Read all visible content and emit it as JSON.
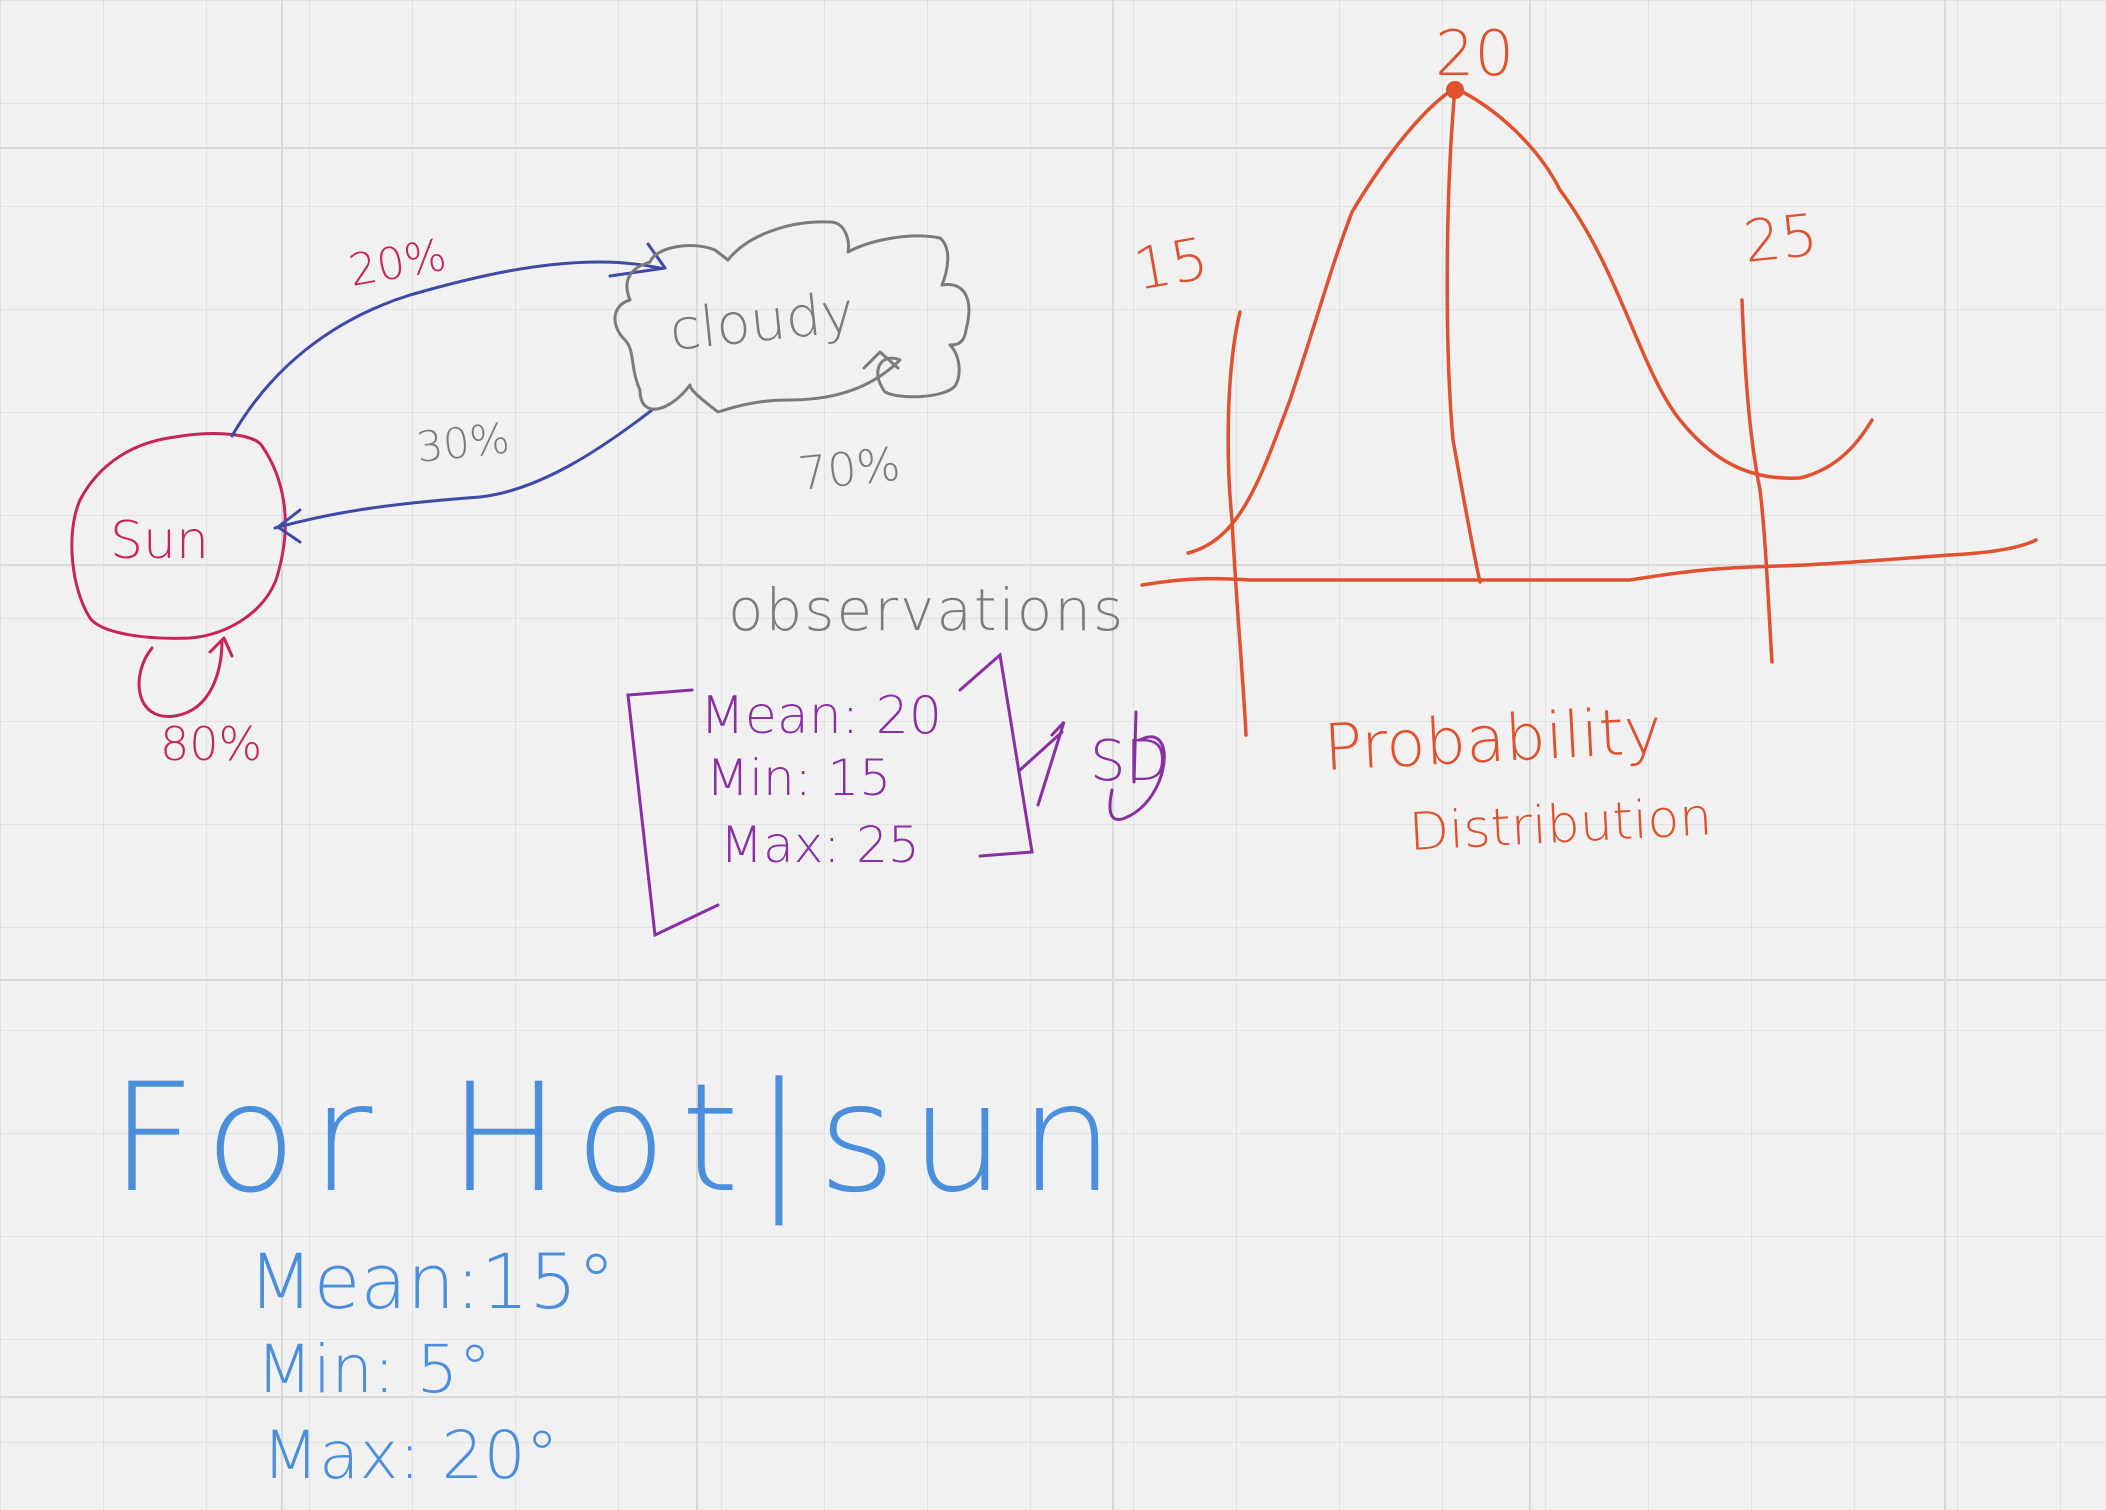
{
  "colors": {
    "background": "#f1f1f1",
    "grid": "#e2e2e2",
    "grid_major": "#d6d6d6",
    "sun": "#c8245a",
    "arrow": "#3e4aa8",
    "cloud": "#7b7b7b",
    "observations": "#8a2fa3",
    "distribution": "#e0522f",
    "hot_sun": "#4b8fdc"
  },
  "markov": {
    "sun_label": "Sun",
    "cloudy_label": "cloudy",
    "sun_to_cloudy": "20%",
    "cloudy_to_sun": "30%",
    "sun_self": "80%",
    "cloudy_self": "70%"
  },
  "observations": {
    "heading": "observations",
    "mean": "Mean: 20",
    "min": "Min: 15",
    "max": "Max: 25",
    "result": "SD"
  },
  "distribution": {
    "peak_label": "20",
    "left_label": "15",
    "right_label": "25",
    "caption_line1": "Probability",
    "caption_line2": "Distribution"
  },
  "hot_sun": {
    "heading": "For Hot|sun",
    "mean": "Mean:15°",
    "min": "Min: 5°",
    "max": "Max: 20°"
  }
}
